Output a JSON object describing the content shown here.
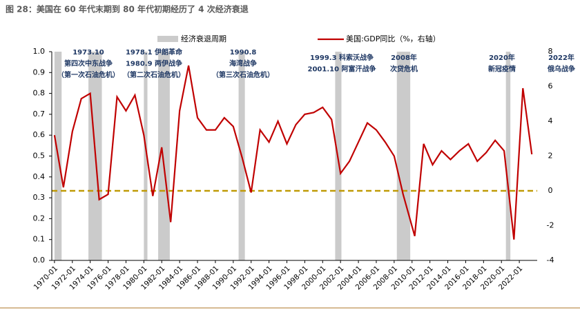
{
  "chart_data": {
    "type": "bar-line",
    "title": "图 28：美国在 60 年代末期到 80 年代初期经历了 4 次经济衰退",
    "xlim": [
      1969.7,
      2024
    ],
    "xticks": [
      {
        "value": 1970,
        "label": "1970-01"
      },
      {
        "value": 1972,
        "label": "1972-01"
      },
      {
        "value": 1974,
        "label": "1974-01"
      },
      {
        "value": 1976,
        "label": "1976-01"
      },
      {
        "value": 1978,
        "label": "1978-01"
      },
      {
        "value": 1980,
        "label": "1980-01"
      },
      {
        "value": 1982,
        "label": "1982-01"
      },
      {
        "value": 1984,
        "label": "1984-01"
      },
      {
        "value": 1986,
        "label": "1986-01"
      },
      {
        "value": 1988,
        "label": "1988-01"
      },
      {
        "value": 1990,
        "label": "1990-01"
      },
      {
        "value": 1992,
        "label": "1992-01"
      },
      {
        "value": 1994,
        "label": "1994-01"
      },
      {
        "value": 1996,
        "label": "1996-01"
      },
      {
        "value": 1998,
        "label": "1998-01"
      },
      {
        "value": 2000,
        "label": "2000-01"
      },
      {
        "value": 2002,
        "label": "2002-01"
      },
      {
        "value": 2004,
        "label": "2004-01"
      },
      {
        "value": 2006,
        "label": "2006-01"
      },
      {
        "value": 2008,
        "label": "2008-01"
      },
      {
        "value": 2010,
        "label": "2010-01"
      },
      {
        "value": 2012,
        "label": "2012-01"
      },
      {
        "value": 2014,
        "label": "2014-01"
      },
      {
        "value": 2016,
        "label": "2016-01"
      },
      {
        "value": 2018,
        "label": "2018-01"
      },
      {
        "value": 2020,
        "label": "2020-01"
      },
      {
        "value": 2022,
        "label": "2022-01"
      }
    ],
    "ylim": [
      0,
      1
    ],
    "yticks": [
      {
        "value": 0,
        "label": "0.0"
      },
      0.1,
      0.2,
      0.3,
      0.4,
      0.5,
      0.6,
      0.7,
      0.8,
      0.9,
      {
        "value": 1,
        "label": "1.0"
      }
    ],
    "y2lim": [
      -4,
      8
    ],
    "y2ticks": [
      -4,
      -2,
      0,
      2,
      4,
      6,
      8
    ],
    "zero_line": {
      "value": 0,
      "color": "#c09a06",
      "axis": "y2"
    },
    "series": [
      {
        "name": "经济衰退周期",
        "type": "bar",
        "color": "#cbcbcb",
        "periods": [
          [
            1970.0,
            1970.8
          ],
          [
            1973.8,
            1975.3
          ],
          [
            1980.0,
            1980.4
          ],
          [
            1981.6,
            1982.9
          ],
          [
            1990.6,
            1991.3
          ],
          [
            2001.4,
            2002.1
          ],
          [
            2008.3,
            2009.8
          ],
          [
            2020.5,
            2021.0
          ]
        ],
        "values": [
          1,
          1,
          1,
          1,
          1,
          1,
          1,
          1
        ]
      },
      {
        "name": "美国:GDP同比（%，右轴）",
        "type": "line",
        "color": "#c00000",
        "axis": "y2",
        "x": [
          1970,
          1971,
          1972,
          1973,
          1974,
          1975,
          1976,
          1977,
          1978,
          1979,
          1980,
          1981,
          1982,
          1983,
          1984,
          1985,
          1986,
          1987,
          1988,
          1989,
          1990,
          1991,
          1992,
          1993,
          1994,
          1995,
          1996,
          1997,
          1998,
          1999,
          2000,
          2001,
          2002,
          2003,
          2004,
          2005,
          2006,
          2007,
          2008,
          2009,
          2010.3,
          2011.3,
          2012.3,
          2013.3,
          2014.3,
          2015.3,
          2016.3,
          2017.3,
          2018.3,
          2019.3,
          2020.3,
          2021.4,
          2022.4,
          2023.4
        ],
        "values": [
          3.2,
          0.2,
          3.4,
          5.3,
          5.6,
          -0.5,
          -0.2,
          5.4,
          4.6,
          5.5,
          3.2,
          -0.3,
          2.5,
          -1.8,
          4.6,
          7.2,
          4.2,
          3.5,
          3.5,
          4.2,
          3.7,
          1.9,
          -0.1,
          3.5,
          2.8,
          4.0,
          2.7,
          3.8,
          4.4,
          4.5,
          4.8,
          4.1,
          1.0,
          1.7,
          2.8,
          3.9,
          3.5,
          2.8,
          2.0,
          -0.2,
          -2.6,
          2.7,
          1.5,
          2.3,
          1.8,
          2.3,
          2.7,
          1.7,
          2.2,
          2.9,
          2.3,
          -2.8,
          5.9,
          2.1
        ]
      }
    ],
    "annotations": [
      {
        "lines": [
          "1973.10",
          "第四次中东战争",
          "（第一次石油危机）"
        ]
      },
      {
        "lines": [
          "1978.1 伊朗革命",
          "1980.9 两伊战争",
          "（第二次石油危机）"
        ]
      },
      {
        "lines": [
          "1990.8",
          "海湾战争",
          "（第三次石油危机）"
        ]
      },
      {
        "lines": [
          "1999.3 科索沃战争",
          "2001.10 阿富汗战争"
        ]
      },
      {
        "lines": [
          "2008年",
          "次贷危机"
        ]
      },
      {
        "lines": [
          "2020年",
          "新冠疫情"
        ]
      },
      {
        "lines": [
          "2022年",
          "俄乌战争"
        ]
      }
    ]
  }
}
